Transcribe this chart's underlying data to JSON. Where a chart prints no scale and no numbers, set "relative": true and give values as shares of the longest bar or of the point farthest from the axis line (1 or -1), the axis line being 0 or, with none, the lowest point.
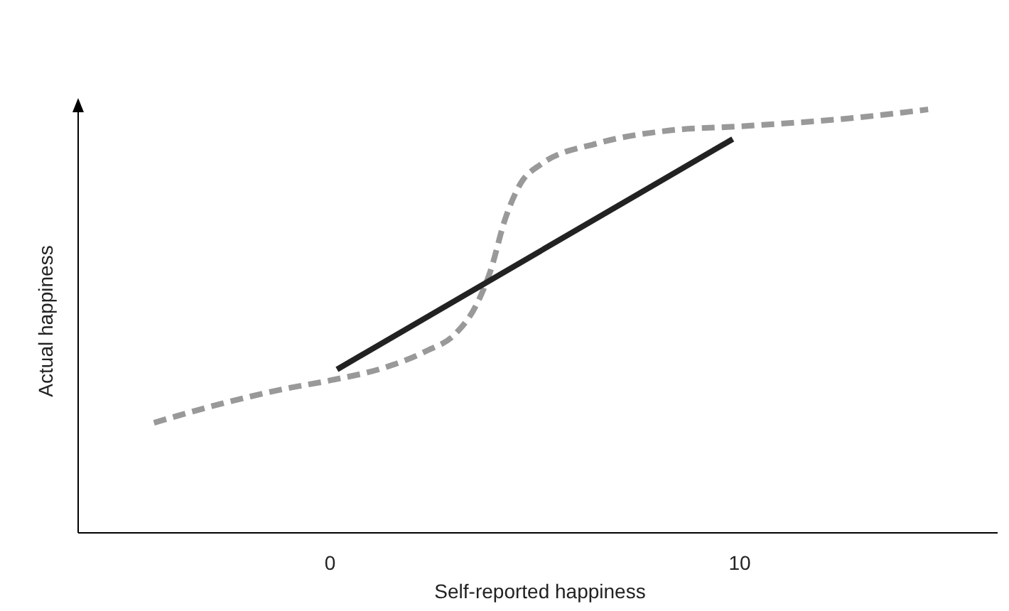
{
  "chart_data": {
    "type": "line",
    "xlabel": "Self-reported happiness",
    "ylabel": "Actual happiness",
    "relative": true,
    "xlim": [
      -6.15,
      16.4
    ],
    "xticks": [
      0,
      10
    ],
    "series": [
      {
        "color": "#999999",
        "line_style": "dashed",
        "x": [
          -4.3,
          -2.85,
          -1.11,
          0,
          1.32,
          2.36,
          3.06,
          3.58,
          3.92,
          4.27,
          4.62,
          5.14,
          6.53,
          8.26,
          10,
          12.8,
          14.6
        ],
        "values": [
          0.26,
          0.3,
          0.34,
          0.36,
          0.39,
          0.43,
          0.47,
          0.54,
          0.62,
          0.74,
          0.82,
          0.87,
          0.92,
          0.95,
          0.96,
          0.98,
          1.0
        ]
      },
      {
        "color": "#222222",
        "line_style": "solid",
        "x": [
          0.17,
          9.83
        ],
        "values": [
          0.386,
          0.93
        ]
      }
    ]
  }
}
